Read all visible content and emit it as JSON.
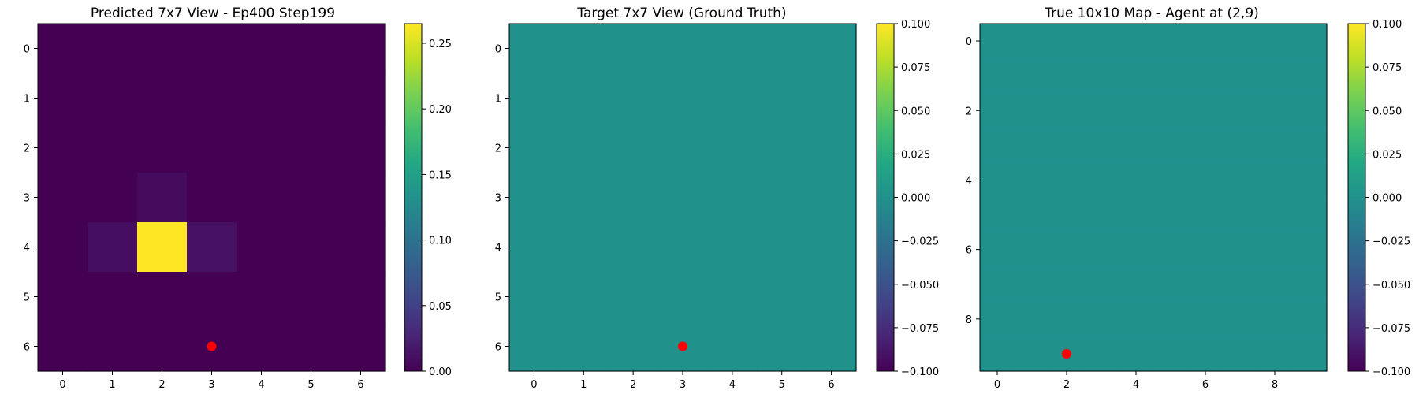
{
  "chart_data": [
    {
      "type": "heatmap",
      "title": "Predicted 7x7 View - Ep400 Step199",
      "xlabel": "",
      "ylabel": "",
      "x_ticks": [
        0,
        1,
        2,
        3,
        4,
        5,
        6
      ],
      "y_ticks": [
        0,
        1,
        2,
        3,
        4,
        5,
        6
      ],
      "grid": false,
      "colormap": "viridis",
      "value_range": [
        0.0,
        0.265
      ],
      "colorbar_ticks": [
        "0.00",
        "0.05",
        "0.10",
        "0.15",
        "0.20",
        "0.25"
      ],
      "colorbar_tick_values": [
        0.0,
        0.05,
        0.1,
        0.15,
        0.2,
        0.25
      ],
      "values": [
        [
          0.0,
          0.0,
          0.0,
          0.0,
          0.0,
          0.0,
          0.0
        ],
        [
          0.0,
          0.0,
          0.0,
          0.0,
          0.0,
          0.0,
          0.0
        ],
        [
          0.0,
          0.0,
          0.0,
          0.0,
          0.0,
          0.0,
          0.0
        ],
        [
          0.0,
          0.0,
          0.008,
          0.0,
          0.0,
          0.0,
          0.0
        ],
        [
          0.0,
          0.01,
          0.265,
          0.012,
          0.0,
          0.0,
          0.0
        ],
        [
          0.0,
          0.0,
          0.0,
          0.0,
          0.0,
          0.0,
          0.0
        ],
        [
          0.0,
          0.0,
          0.0,
          0.0,
          0.0,
          0.0,
          0.0
        ]
      ],
      "agent_marker": {
        "x": 3,
        "y": 6,
        "color": "#ff0000"
      }
    },
    {
      "type": "heatmap",
      "title": "Target 7x7 View (Ground Truth)",
      "xlabel": "",
      "ylabel": "",
      "x_ticks": [
        0,
        1,
        2,
        3,
        4,
        5,
        6
      ],
      "y_ticks": [
        0,
        1,
        2,
        3,
        4,
        5,
        6
      ],
      "grid": false,
      "colormap": "viridis",
      "value_range": [
        -0.1,
        0.1
      ],
      "colorbar_ticks": [
        "0.100",
        "0.075",
        "0.050",
        "0.025",
        "0.000",
        "−0.025",
        "−0.050",
        "−0.075",
        "−0.100"
      ],
      "colorbar_tick_values": [
        0.1,
        0.075,
        0.05,
        0.025,
        0.0,
        -0.025,
        -0.05,
        -0.075,
        -0.1
      ],
      "values": [
        [
          0,
          0,
          0,
          0,
          0,
          0,
          0
        ],
        [
          0,
          0,
          0,
          0,
          0,
          0,
          0
        ],
        [
          0,
          0,
          0,
          0,
          0,
          0,
          0
        ],
        [
          0,
          0,
          0,
          0,
          0,
          0,
          0
        ],
        [
          0,
          0,
          0,
          0,
          0,
          0,
          0
        ],
        [
          0,
          0,
          0,
          0,
          0,
          0,
          0
        ],
        [
          0,
          0,
          0,
          0,
          0,
          0,
          0
        ]
      ],
      "agent_marker": {
        "x": 3,
        "y": 6,
        "color": "#ff0000"
      }
    },
    {
      "type": "heatmap",
      "title": "True 10x10 Map - Agent at (2,9)",
      "xlabel": "",
      "ylabel": "",
      "x_ticks": [
        0,
        2,
        4,
        6,
        8
      ],
      "y_ticks": [
        0,
        2,
        4,
        6,
        8
      ],
      "grid_size": 10,
      "grid": false,
      "colormap": "viridis",
      "value_range": [
        -0.1,
        0.1
      ],
      "colorbar_ticks": [
        "0.100",
        "0.075",
        "0.050",
        "0.025",
        "0.000",
        "−0.025",
        "−0.050",
        "−0.075",
        "−0.100"
      ],
      "colorbar_tick_values": [
        0.1,
        0.075,
        0.05,
        0.025,
        0.0,
        -0.025,
        -0.05,
        -0.075,
        -0.1
      ],
      "uniform_value": 0.0,
      "agent_marker": {
        "x": 2,
        "y": 9,
        "color": "#ff0000"
      }
    }
  ]
}
